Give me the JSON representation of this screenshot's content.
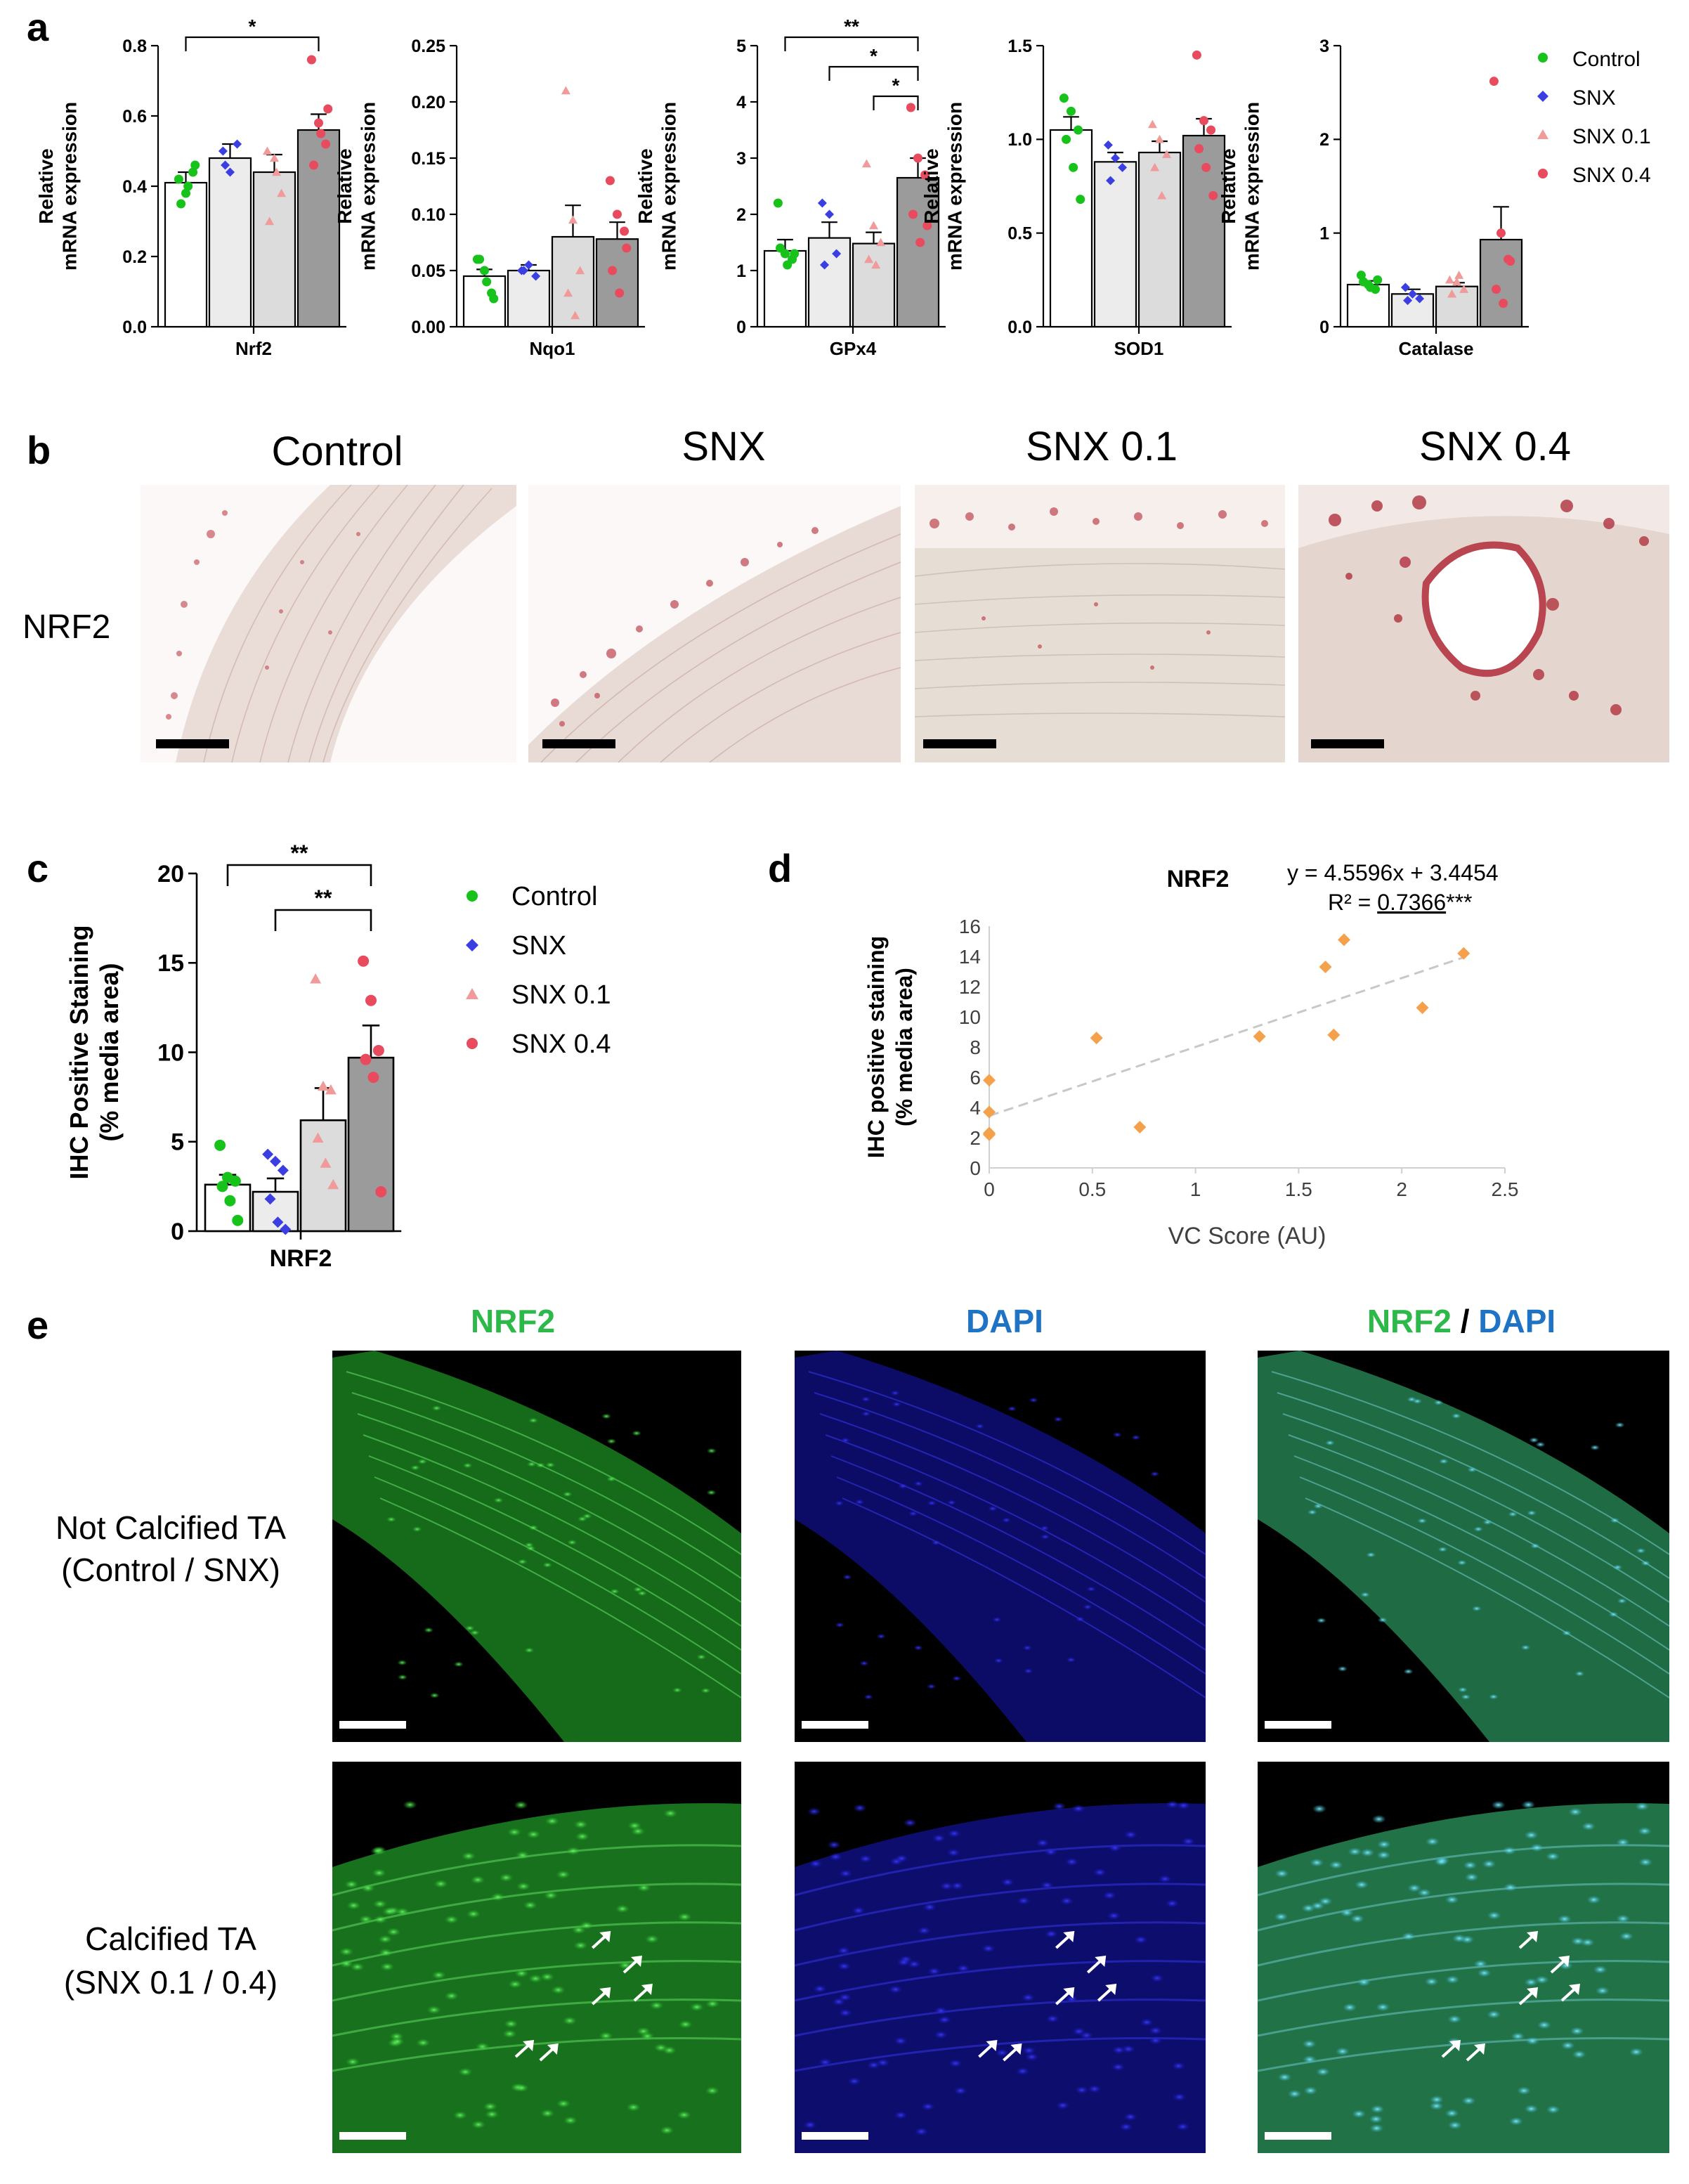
{
  "panels": {
    "a": {
      "letter": "a",
      "ylabel_1": "Relative",
      "ylabel_2": "mRNA expression",
      "groups": [
        "Control",
        "SNX",
        "SNX 0.1",
        "SNX 0.4"
      ],
      "legend": [
        "Control",
        "SNX",
        "SNX 0.1",
        "SNX 0.4"
      ]
    },
    "b": {
      "letter": "b",
      "columns": [
        "Control",
        "SNX",
        "SNX 0.1",
        "SNX 0.4"
      ],
      "row_label": "NRF2"
    },
    "c": {
      "letter": "c",
      "legend": [
        "Control",
        "SNX",
        "SNX 0.1",
        "SNX 0.4"
      ]
    },
    "d": {
      "letter": "d",
      "equation": "y = 4.5596x + 3.4454",
      "r2_prefix": "R² = ",
      "r2_value": "0.7366",
      "r2_suffix": "***"
    },
    "e": {
      "letter": "e",
      "columns": {
        "nrf2": "NRF2",
        "dapi": "DAPI",
        "merge_a": "NRF2",
        "merge_sep": " / ",
        "merge_b": "DAPI"
      },
      "rows": [
        {
          "line1": "Not Calcified TA",
          "line2": "(Control / SNX)"
        },
        {
          "line1": "Calcified TA",
          "line2": "(SNX 0.1 / 0.4)"
        }
      ]
    }
  },
  "colors": {
    "control": "#17c21b",
    "snx": "#3b3ee0",
    "snx01": "#f09a9a",
    "snx04": "#e84b5e",
    "scatter": "#f5a04a",
    "nrf2_text": "#2db84a",
    "dapi_text": "#1f73c4",
    "bars": [
      "#ffffff",
      "#ececec",
      "#dcdcdc",
      "#9b9b9b"
    ]
  },
  "chart_data": [
    {
      "id": "a-nrf2",
      "type": "bar",
      "xlabel": "Nrf2",
      "ylim": [
        0,
        0.8
      ],
      "yticks": [
        "0.0",
        "0.2",
        "0.4",
        "0.6",
        "0.8"
      ],
      "means": [
        0.41,
        0.48,
        0.44,
        0.56
      ],
      "sem": [
        0.03,
        0.04,
        0.05,
        0.045
      ],
      "points": [
        [
          0.42,
          0.38,
          0.44,
          0.35,
          0.4,
          0.46
        ],
        [
          0.5,
          0.44,
          0.52,
          0.46
        ],
        [
          0.5,
          0.48,
          0.38,
          0.3,
          0.44
        ],
        [
          0.76,
          0.58,
          0.52,
          0.46,
          0.55,
          0.62
        ]
      ],
      "significance": [
        {
          "from": 0,
          "to": 3,
          "label": "*"
        }
      ]
    },
    {
      "id": "a-nqo1",
      "type": "bar",
      "xlabel": "Nqo1",
      "ylim": [
        0,
        0.25
      ],
      "yticks": [
        "0.00",
        "0.05",
        "0.10",
        "0.15",
        "0.20",
        "0.25"
      ],
      "means": [
        0.045,
        0.05,
        0.08,
        0.078
      ],
      "sem": [
        0.006,
        0.005,
        0.028,
        0.015
      ],
      "points": [
        [
          0.06,
          0.05,
          0.03,
          0.06,
          0.04,
          0.025
        ],
        [
          0.05,
          0.055,
          0.045,
          0.05
        ],
        [
          0.21,
          0.095,
          0.05,
          0.03,
          0.01
        ],
        [
          0.13,
          0.1,
          0.085,
          0.05,
          0.03,
          0.07
        ]
      ],
      "significance": []
    },
    {
      "id": "a-gpx4",
      "type": "bar",
      "xlabel": "GPx4",
      "ylim": [
        0,
        5
      ],
      "yticks": [
        "0",
        "1",
        "2",
        "3",
        "4",
        "5"
      ],
      "means": [
        1.35,
        1.58,
        1.48,
        2.65
      ],
      "sem": [
        0.2,
        0.28,
        0.2,
        0.35
      ],
      "points": [
        [
          2.2,
          1.3,
          1.2,
          1.4,
          1.1,
          1.3
        ],
        [
          2.2,
          2.0,
          1.3,
          1.1
        ],
        [
          2.9,
          1.8,
          1.5,
          1.2,
          1.1
        ],
        [
          3.9,
          3.0,
          2.7,
          2.0,
          1.5,
          1.8
        ]
      ],
      "significance": [
        {
          "from": 0,
          "to": 3,
          "label": "**"
        },
        {
          "from": 1,
          "to": 3,
          "label": "*"
        },
        {
          "from": 2,
          "to": 3,
          "label": "*"
        }
      ]
    },
    {
      "id": "a-sod1",
      "type": "bar",
      "xlabel": "SOD1",
      "ylim": [
        0,
        1.5
      ],
      "yticks": [
        "0.0",
        "0.5",
        "1.0",
        "1.5"
      ],
      "means": [
        1.05,
        0.88,
        0.93,
        1.02
      ],
      "sem": [
        0.07,
        0.05,
        0.06,
        0.09
      ],
      "points": [
        [
          1.22,
          1.15,
          1.05,
          1.0,
          0.85,
          0.68
        ],
        [
          0.97,
          0.9,
          0.85,
          0.78
        ],
        [
          1.08,
          1.0,
          0.92,
          0.85,
          0.7
        ],
        [
          1.45,
          1.1,
          1.05,
          0.95,
          0.85,
          0.7
        ]
      ],
      "significance": []
    },
    {
      "id": "a-catalase",
      "type": "bar",
      "xlabel": "Catalase",
      "ylim": [
        0,
        3
      ],
      "yticks": [
        "0",
        "1",
        "2",
        "3"
      ],
      "means": [
        0.45,
        0.35,
        0.43,
        0.93
      ],
      "sem": [
        0.04,
        0.05,
        0.04,
        0.35
      ],
      "points": [
        [
          0.55,
          0.45,
          0.4,
          0.48,
          0.42,
          0.5
        ],
        [
          0.42,
          0.35,
          0.3,
          0.28
        ],
        [
          0.5,
          0.48,
          0.4,
          0.35,
          0.55
        ],
        [
          2.62,
          1.0,
          0.72,
          0.4,
          0.25,
          0.7
        ]
      ],
      "significance": []
    },
    {
      "id": "c-nrf2",
      "type": "bar",
      "xlabel": "NRF2",
      "ylabel_1": "IHC Positive Staining",
      "ylabel_2": "(% media area)",
      "ylim": [
        0,
        20
      ],
      "yticks": [
        "0",
        "5",
        "10",
        "15",
        "20"
      ],
      "means": [
        2.6,
        2.2,
        6.2,
        9.7
      ],
      "sem": [
        0.55,
        0.75,
        1.8,
        1.8
      ],
      "points": [
        [
          4.8,
          3.0,
          2.8,
          2.5,
          1.7,
          0.6
        ],
        [
          4.3,
          3.9,
          3.4,
          1.8,
          0.5,
          0.1
        ],
        [
          14.1,
          8.1,
          7.9,
          5.2,
          3.8,
          2.6
        ],
        [
          15.1,
          12.9,
          10.1,
          9.6,
          8.6,
          2.2
        ]
      ],
      "significance": [
        {
          "from": 0,
          "to": 3,
          "label": "**"
        },
        {
          "from": 1,
          "to": 3,
          "label": "**"
        }
      ]
    },
    {
      "id": "d-scatter",
      "type": "scatter",
      "title": "NRF2",
      "xlabel": "VC Score (AU)",
      "ylabel_1": "IHC positive staining",
      "ylabel_2": "(% media area)",
      "xlim": [
        0,
        2.5
      ],
      "ylim": [
        0,
        16
      ],
      "xticks": [
        "0",
        "0.5",
        "1",
        "1.5",
        "2",
        "2.5"
      ],
      "yticks": [
        "0",
        "2",
        "4",
        "6",
        "8",
        "10",
        "12",
        "14",
        "16"
      ],
      "x": [
        0,
        0,
        0,
        0,
        0.52,
        0.73,
        1.31,
        1.63,
        1.67,
        1.72,
        2.1,
        2.3
      ],
      "y": [
        5.8,
        3.7,
        2.3,
        2.2,
        8.6,
        2.7,
        8.7,
        13.3,
        8.8,
        15.1,
        10.6,
        14.2
      ],
      "trend": {
        "slope": 4.5596,
        "intercept": 3.4454
      }
    }
  ]
}
